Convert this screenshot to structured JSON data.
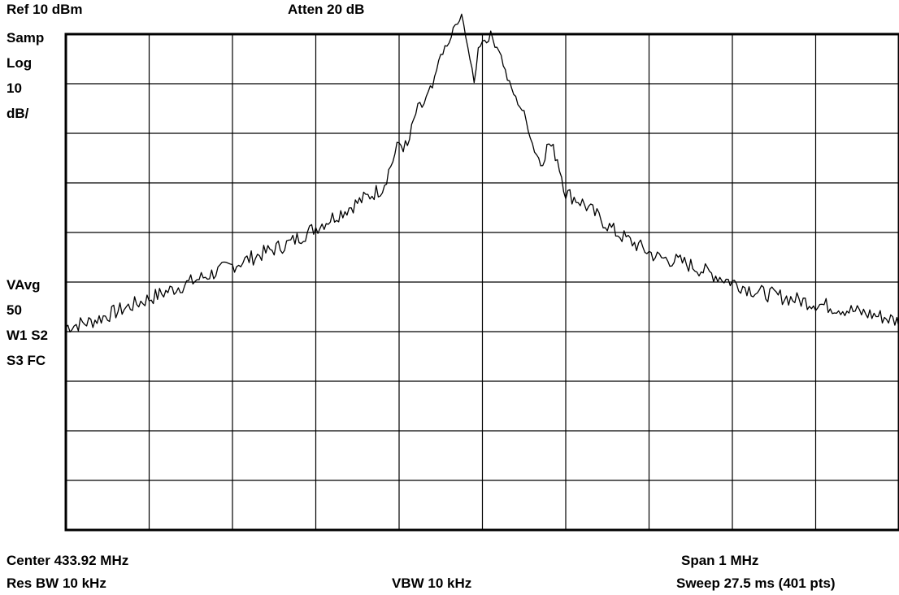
{
  "header": {
    "ref_level": "Ref 10 dBm",
    "attenuation": "Atten 20 dB"
  },
  "left_panel": {
    "detector": "Samp",
    "scale_type": "Log",
    "scale_value": "10",
    "scale_unit": "dB/",
    "averaging": "VAvg",
    "avg_count": "50",
    "markers_1": "W1 S2",
    "markers_2": "S3 FC"
  },
  "footer": {
    "center": "Center 433.92 MHz",
    "res_bw": "Res BW 10 kHz",
    "vbw": "VBW 10 kHz",
    "span": "Span 1 MHz",
    "sweep": "Sweep 27.5 ms (401 pts)"
  },
  "chart_data": {
    "type": "line",
    "title": "",
    "xlabel": "",
    "ylabel": "",
    "xlim": [
      433.42,
      434.42
    ],
    "ylim": [
      -90,
      10
    ],
    "x_divisions": 10,
    "y_divisions": 10,
    "grid": true,
    "line_color": "#000000",
    "series": [
      {
        "x": [
          433.42,
          433.45,
          433.48,
          433.51,
          433.54,
          433.57,
          433.6,
          433.63,
          433.66,
          433.69,
          433.72,
          433.74,
          433.76,
          433.78,
          433.8,
          433.82,
          433.83,
          433.84,
          433.85,
          433.86,
          433.87,
          433.88,
          433.885,
          433.89,
          433.895,
          433.9,
          433.91,
          433.915,
          433.92,
          433.925,
          433.93,
          433.935,
          433.94,
          433.95,
          433.96,
          433.97,
          433.98,
          433.99,
          434.0,
          434.01,
          434.02,
          434.04,
          434.06,
          434.08,
          434.1,
          434.13,
          434.16,
          434.19,
          434.22,
          434.25,
          434.28,
          434.31,
          434.34,
          434.37,
          434.4,
          434.42
        ],
        "y": [
          -49,
          -48,
          -46,
          -44,
          -42,
          -40,
          -38,
          -36,
          -34,
          -32,
          -29,
          -27,
          -25,
          -23,
          -21,
          -12,
          -13,
          -6,
          -4,
          -1,
          6,
          8,
          11,
          12,
          13.5,
          10,
          0,
          7,
          9,
          8.5,
          10,
          8,
          7,
          1,
          -3,
          -6,
          -12,
          -16,
          -12,
          -15,
          -22,
          -24,
          -27,
          -30,
          -32,
          -35,
          -36,
          -38,
          -40,
          -42,
          -43,
          -44,
          -45,
          -46,
          -47,
          -48
        ]
      }
    ]
  }
}
